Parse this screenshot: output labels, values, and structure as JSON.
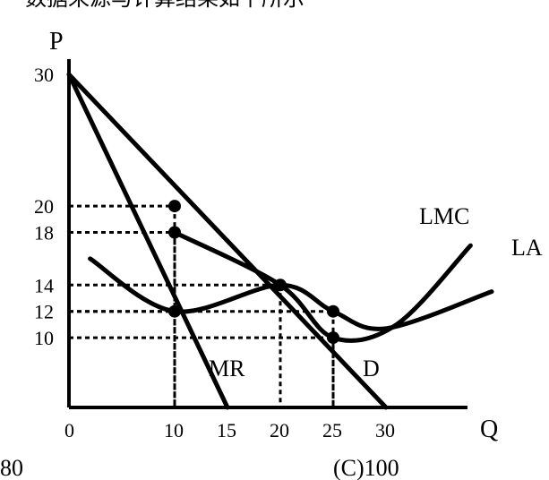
{
  "top_text_fragment": "数据来源与计算结果如下所示",
  "chart_data": {
    "type": "line",
    "title": "",
    "x_axis": {
      "label": "Q",
      "ticks": [
        0,
        10,
        15,
        20,
        25,
        30
      ],
      "range": [
        0,
        37
      ]
    },
    "y_axis": {
      "label": "P",
      "ticks": [
        10,
        12,
        14,
        18,
        20,
        30
      ],
      "range": [
        4.7,
        30
      ]
    },
    "series": [
      {
        "name": "D",
        "points": [
          [
            0,
            30
          ],
          [
            30,
            4.7
          ]
        ]
      },
      {
        "name": "MR",
        "points": [
          [
            0,
            30
          ],
          [
            15,
            4.7
          ]
        ]
      },
      {
        "name": "LMC",
        "points": [
          [
            10,
            18
          ],
          [
            20,
            14
          ],
          [
            25,
            10
          ],
          [
            31,
            11
          ],
          [
            38,
            17
          ]
        ]
      },
      {
        "name": "LA",
        "points": [
          [
            2,
            16
          ],
          [
            10,
            12
          ],
          [
            20,
            14
          ],
          [
            25,
            12
          ],
          [
            30,
            10.7
          ],
          [
            40,
            13.5
          ]
        ]
      }
    ],
    "highlighted_points": [
      {
        "x": 10,
        "y": 20
      },
      {
        "x": 10,
        "y": 18
      },
      {
        "x": 10,
        "y": 12
      },
      {
        "x": 20,
        "y": 14
      },
      {
        "x": 25,
        "y": 12
      },
      {
        "x": 25,
        "y": 10
      }
    ],
    "guide_lines": [
      {
        "x": 10,
        "y": 20
      },
      {
        "x": 10,
        "y": 18
      },
      {
        "x": 10,
        "y": 12
      },
      {
        "x": 20,
        "y": 14
      },
      {
        "x": 25,
        "y": 12
      },
      {
        "x": 25,
        "y": 10
      }
    ]
  },
  "bottom_labels": {
    "left": "80",
    "right": "(C)100"
  }
}
